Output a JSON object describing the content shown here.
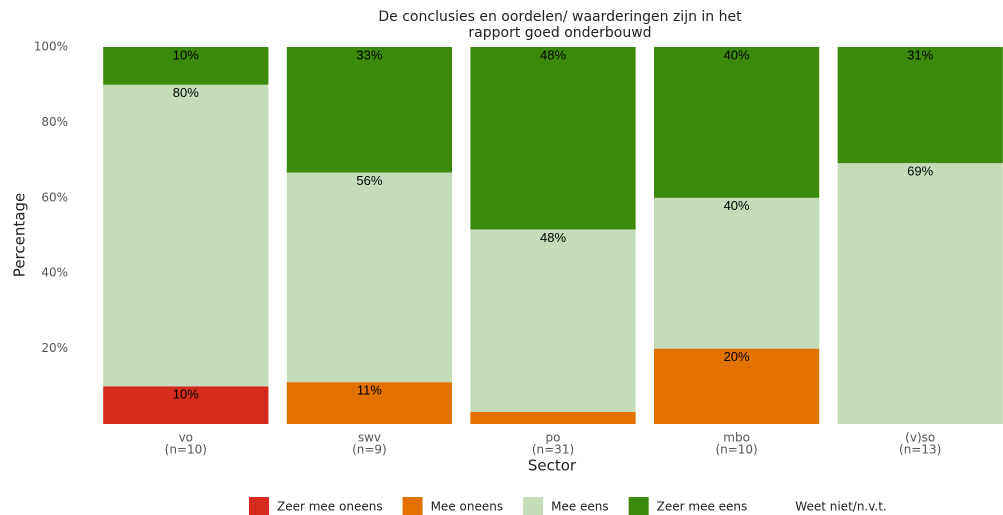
{
  "chart_data": {
    "type": "stacked_bar",
    "title": [
      "De conclusies en oordelen/ waarderingen zijn in het",
      "rapport goed onderbouwd"
    ],
    "x_label": "Sector",
    "y_label": "Percentage",
    "categories": [
      [
        "vo",
        "(n=10)"
      ],
      [
        "swv",
        "(n=9)"
      ],
      [
        "po",
        "(n=31)"
      ],
      [
        "mbo",
        "(n=10)"
      ],
      [
        "(v)so",
        "(n=13)"
      ]
    ],
    "series": [
      {
        "name": "Zeer mee oneens",
        "color": "#d52b1e",
        "values": [
          10,
          0,
          0,
          0,
          0
        ],
        "value_labels": [
          "10%",
          null,
          null,
          null,
          null
        ]
      },
      {
        "name": "Mee oneens",
        "color": "#e37100",
        "values": [
          0,
          11.1,
          3.2,
          20,
          0
        ],
        "value_labels": [
          null,
          "11%",
          null,
          "20%",
          null
        ]
      },
      {
        "name": "Mee eens",
        "color": "#c4dcb9",
        "values": [
          80,
          55.6,
          48.4,
          40,
          69.2
        ],
        "value_labels": [
          "80%",
          "56%",
          "48%",
          "40%",
          "69%"
        ]
      },
      {
        "name": "Zeer mee eens",
        "color": "#3b8a0c",
        "values": [
          10,
          33.3,
          48.4,
          40,
          30.8
        ],
        "value_labels": [
          "10%",
          "33%",
          "48%",
          "40%",
          "31%"
        ]
      },
      {
        "name": "Weet niet/n.v.t.",
        "color": "#ffffff",
        "values": [
          0,
          0,
          0,
          0,
          0
        ],
        "value_labels": [
          null,
          null,
          null,
          null,
          null
        ]
      }
    ],
    "ylim": [
      0,
      100
    ],
    "yticks": [
      {
        "value": 20,
        "label": "20%"
      },
      {
        "value": 40,
        "label": "40%"
      },
      {
        "value": 60,
        "label": "60%"
      },
      {
        "value": 80,
        "label": "80%"
      },
      {
        "value": 100,
        "label": "100%"
      }
    ],
    "grid": false,
    "legend": "bottom"
  }
}
